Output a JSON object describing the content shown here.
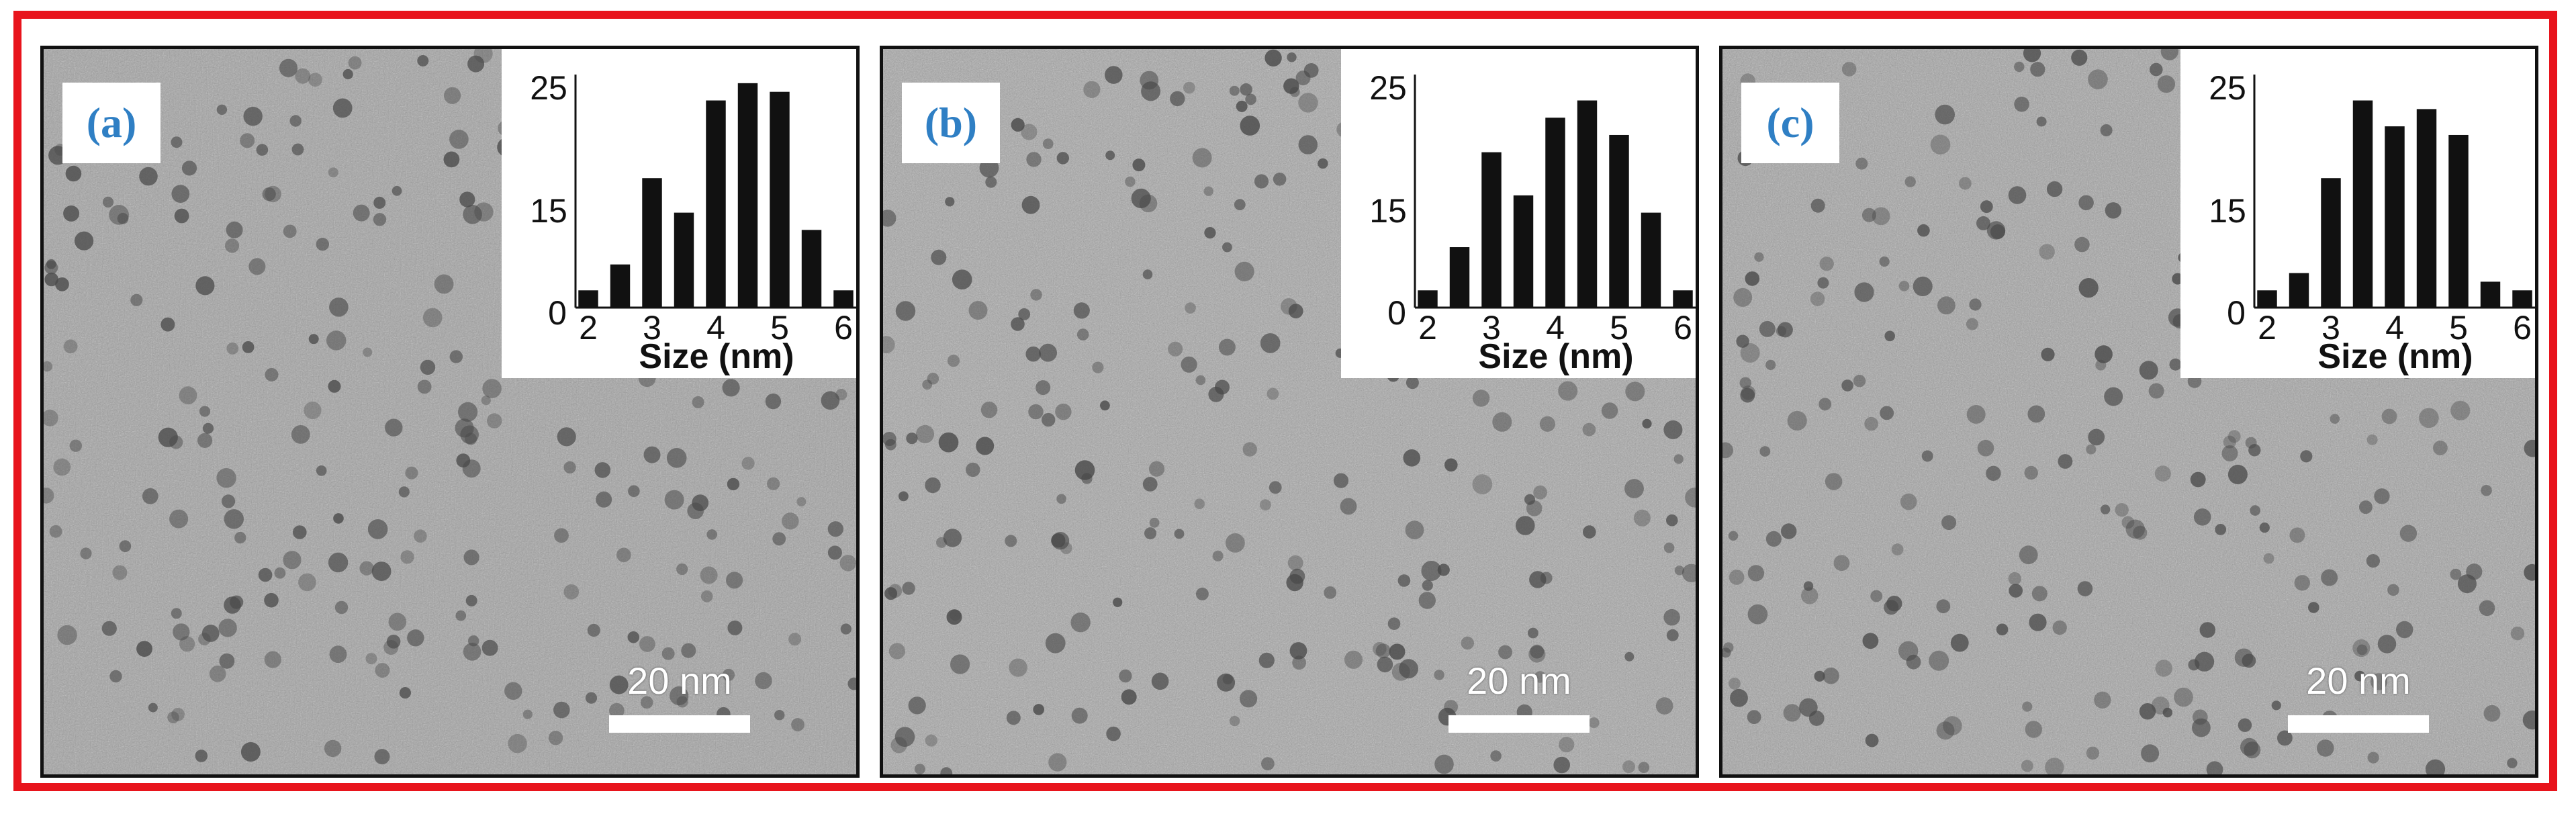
{
  "figure": {
    "colors": {
      "frame_border": "#e8141c",
      "panel_label": "#2f7fc4",
      "bars": "#111111",
      "tem_background": "#a4a4a4"
    },
    "scale_bar_label": "20 nm",
    "panels": [
      {
        "label": "(a)"
      },
      {
        "label": "(b)"
      },
      {
        "label": "(c)"
      }
    ]
  },
  "chart_data": [
    {
      "type": "bar",
      "panel": "(a)",
      "x": [
        2,
        2.5,
        3,
        3.5,
        4,
        4.5,
        5,
        5.5,
        6
      ],
      "values": [
        2,
        5,
        15,
        11,
        24,
        26,
        25,
        9,
        2
      ],
      "xlabel": "Size (nm)",
      "xticks": [
        "2",
        "3",
        "4",
        "5",
        "6"
      ],
      "yticks": [
        "0",
        "15",
        "25"
      ],
      "ylim": [
        0,
        27
      ],
      "xlim": [
        1.8,
        6.2
      ]
    },
    {
      "type": "bar",
      "panel": "(b)",
      "x": [
        2,
        2.5,
        3,
        3.5,
        4,
        4.5,
        5,
        5.5,
        6
      ],
      "values": [
        2,
        7,
        18,
        13,
        22,
        24,
        20,
        11,
        2
      ],
      "xlabel": "Size (nm)",
      "xticks": [
        "2",
        "3",
        "4",
        "5",
        "6"
      ],
      "yticks": [
        "0",
        "15",
        "25"
      ],
      "ylim": [
        0,
        27
      ],
      "xlim": [
        1.8,
        6.2
      ]
    },
    {
      "type": "bar",
      "panel": "(c)",
      "x": [
        2,
        2.5,
        3,
        3.5,
        4,
        4.5,
        5,
        5.5,
        6
      ],
      "values": [
        2,
        4,
        15,
        24,
        21,
        23,
        20,
        3,
        2
      ],
      "xlabel": "Size (nm)",
      "xticks": [
        "2",
        "3",
        "4",
        "5",
        "6"
      ],
      "yticks": [
        "0",
        "15",
        "25"
      ],
      "ylim": [
        0,
        27
      ],
      "xlim": [
        1.8,
        6.2
      ]
    }
  ]
}
